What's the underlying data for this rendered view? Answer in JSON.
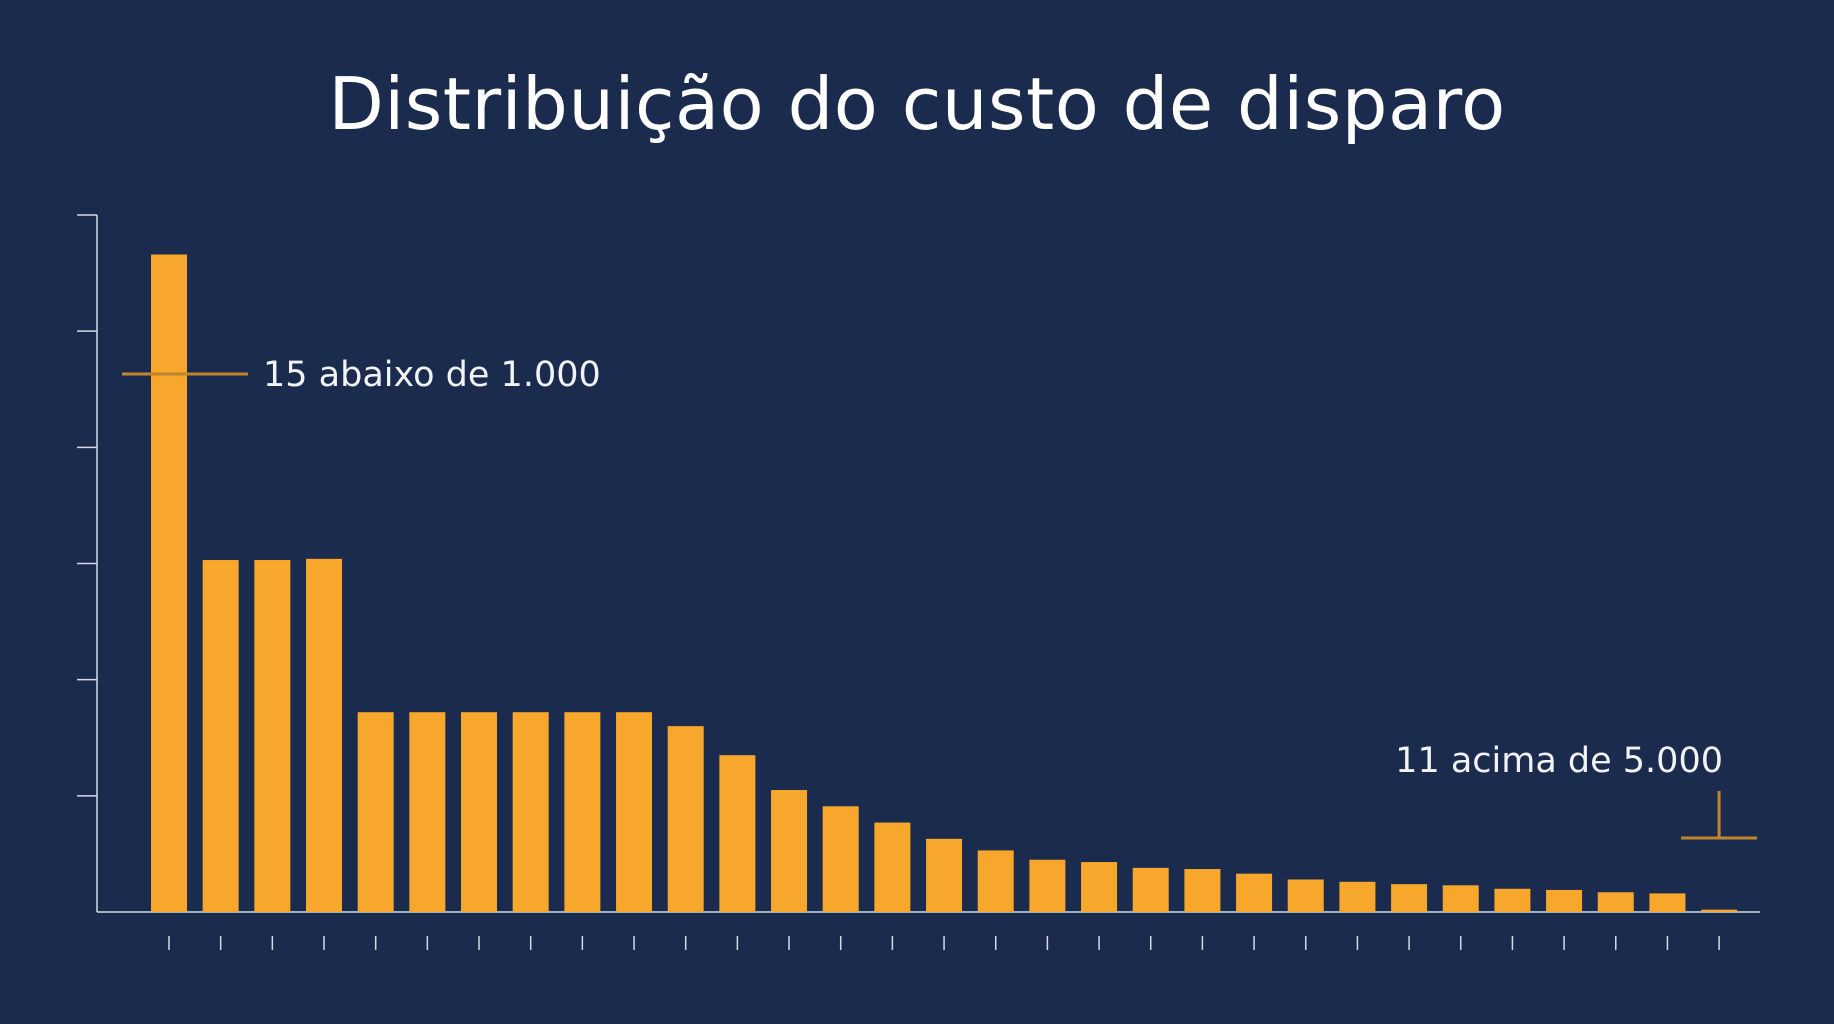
{
  "chart_data": {
    "type": "bar",
    "title": "Distribuição do custo de disparo",
    "xlabel": "",
    "ylabel": "",
    "ylim": [
      0,
      6
    ],
    "grid": false,
    "legend": "none",
    "values": [
      5.66,
      3.03,
      3.03,
      3.04,
      1.72,
      1.72,
      1.72,
      1.72,
      1.72,
      1.72,
      1.6,
      1.35,
      1.05,
      0.91,
      0.77,
      0.63,
      0.53,
      0.45,
      0.43,
      0.38,
      0.37,
      0.33,
      0.28,
      0.26,
      0.24,
      0.23,
      0.2,
      0.19,
      0.17,
      0.16,
      0.02
    ],
    "annotations": [
      {
        "text": "15 abaixo de 1.000",
        "target_bar": 0
      },
      {
        "text": "11 acima de 5.000",
        "target_bar": 30
      }
    ],
    "colors": {
      "background": "#1b2b4d",
      "bar": "#f6a72c",
      "annotation_line": "#c0862e",
      "axis": "#d5dbe6",
      "text": "#f1f3f7"
    }
  }
}
